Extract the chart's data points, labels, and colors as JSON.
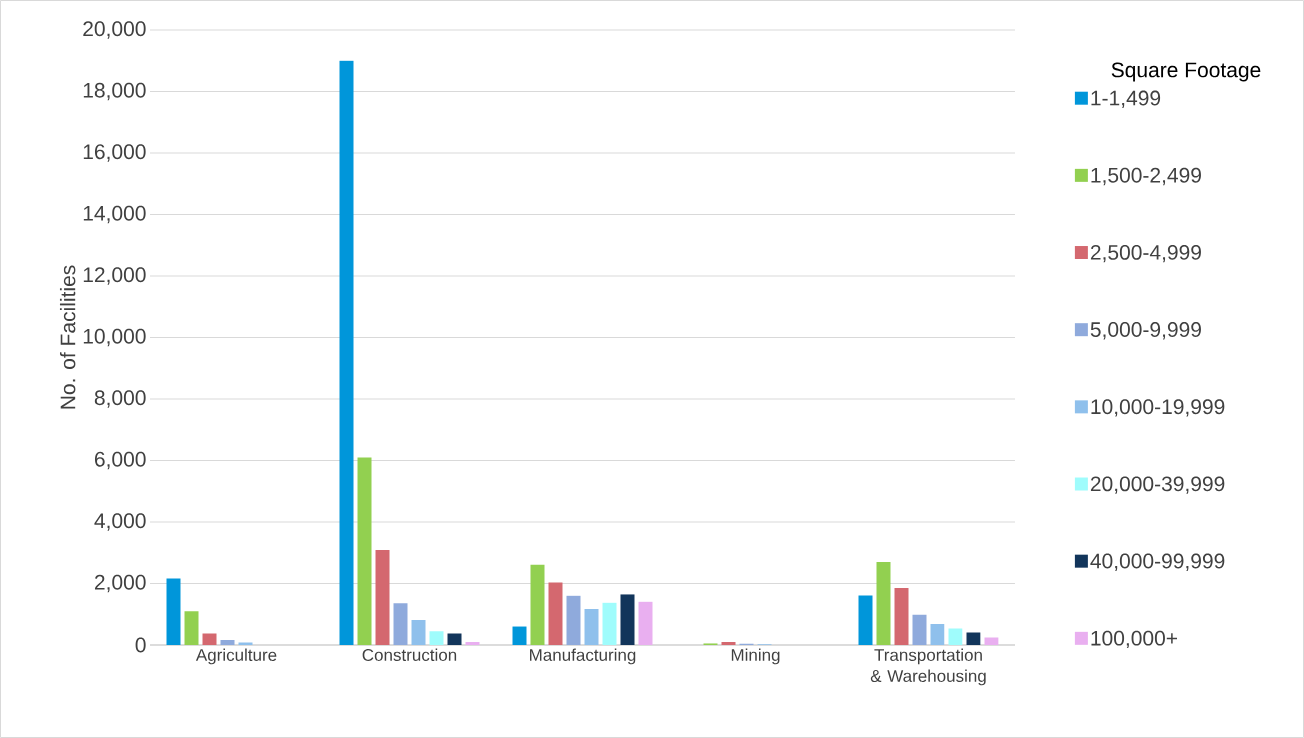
{
  "chart_data": {
    "type": "bar",
    "ylabel": "No. of Facilities",
    "legend_title": "Square Footage",
    "categories": [
      "Agriculture",
      "Construction",
      "Manufacturing",
      "Mining",
      "Transportation & Warehousing"
    ],
    "series": [
      {
        "name": "1-1,499",
        "color": "#0096da",
        "values": [
          2160,
          19000,
          600,
          null,
          1610
        ]
      },
      {
        "name": "1,500-2,499",
        "color": "#92d050",
        "values": [
          1100,
          6100,
          2610,
          50,
          2700
        ]
      },
      {
        "name": "2,500-4,999",
        "color": "#d4686f",
        "values": [
          370,
          3090,
          2030,
          100,
          1850
        ]
      },
      {
        "name": "5,000-9,999",
        "color": "#8faadc",
        "values": [
          160,
          1360,
          1600,
          40,
          980
        ]
      },
      {
        "name": "10,000-19,999",
        "color": "#8fc0ec",
        "values": [
          80,
          810,
          1170,
          20,
          680
        ]
      },
      {
        "name": "20,000-39,999",
        "color": "#9ffcfc",
        "values": [
          null,
          450,
          1370,
          null,
          540
        ]
      },
      {
        "name": "40,000-99,999",
        "color": "#12355b",
        "values": [
          null,
          370,
          1650,
          null,
          410
        ]
      },
      {
        "name": "100,000+",
        "color": "#e9aff0",
        "values": [
          null,
          100,
          1410,
          null,
          240
        ]
      }
    ],
    "ylim": [
      0,
      20000
    ],
    "yticks": [
      0,
      {
        "value": 2000,
        "label": "2,000"
      },
      {
        "value": 4000,
        "label": "4,000"
      },
      {
        "value": 6000,
        "label": "6,000"
      },
      {
        "value": 8000,
        "label": "8,000"
      },
      {
        "value": 10000,
        "label": "10,000"
      },
      {
        "value": 12000,
        "label": "12,000"
      },
      {
        "value": 14000,
        "label": "14,000"
      },
      {
        "value": 16000,
        "label": "16,000"
      },
      {
        "value": 18000,
        "label": "18,000"
      },
      {
        "value": 20000,
        "label": "20,000"
      }
    ],
    "grid": "y",
    "legend": "right"
  }
}
